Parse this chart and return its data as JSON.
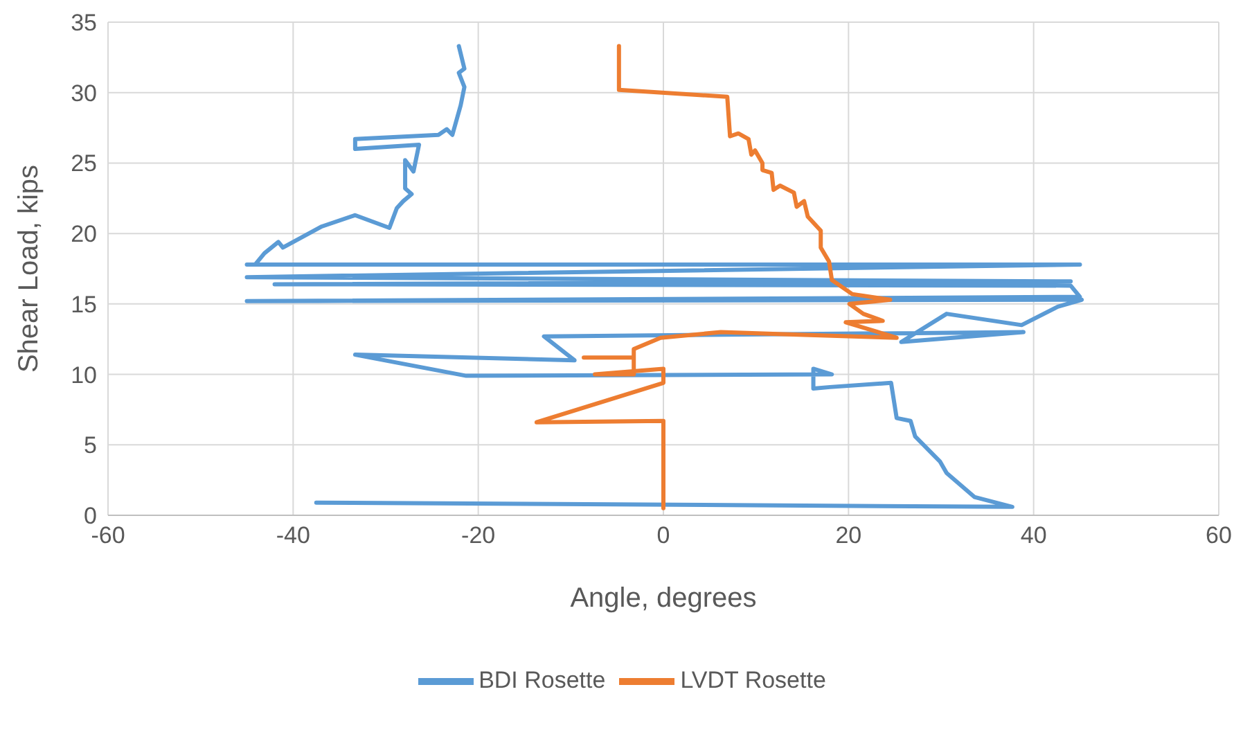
{
  "chart_data": {
    "type": "line",
    "xlabel": "Angle, degrees",
    "ylabel": "Shear Load, kips",
    "xlim": [
      -60,
      60
    ],
    "xticks": [
      -60,
      -40,
      -20,
      0,
      20,
      40,
      60
    ],
    "ylim": [
      0,
      35
    ],
    "yticks": [
      0,
      5,
      10,
      15,
      20,
      25,
      30,
      35
    ],
    "grid": true,
    "legend": "bottom",
    "marker": "none",
    "line_style": "solid",
    "series": [
      {
        "name": "BDI Rosette",
        "color": "#5b9bd5",
        "x": [
          -37.5,
          37.7,
          33.6,
          30.6,
          29.9,
          27.2,
          26.7,
          25.2,
          24.6,
          18,
          16.2,
          16.2,
          18.2,
          -21.3,
          -33.3,
          -9.6,
          -12.9,
          38.9,
          25.7,
          30.6,
          38.7,
          42.6,
          45.2,
          -45,
          45,
          44,
          -42,
          44,
          -45,
          45,
          -45,
          -44.1,
          -43.1,
          -41.6,
          -41.1,
          -36.9,
          -33.3,
          -29.6,
          -28.8,
          -28.1,
          -27.2,
          -27.9,
          -27.9,
          -27,
          -26.4,
          -33.3,
          -33.3,
          -24.3,
          -23.4,
          -22.8,
          -21.9,
          -21.5,
          -22.1,
          -21.5,
          -22.1
        ],
        "values": [
          0.9,
          0.6,
          1.3,
          3,
          3.8,
          5.6,
          6.7,
          6.9,
          9.4,
          9.1,
          9,
          10.4,
          10,
          9.9,
          11.4,
          11,
          12.7,
          13,
          12.3,
          14.3,
          13.5,
          14.8,
          15.3,
          15.2,
          15.5,
          16.3,
          16.4,
          16.6,
          16.9,
          17.8,
          17.8,
          17.8,
          18.6,
          19.4,
          19,
          20.5,
          21.3,
          20.4,
          21.8,
          22.3,
          22.8,
          23.2,
          25.2,
          24.4,
          26.3,
          26,
          26.7,
          27,
          27.4,
          27,
          29.1,
          30.4,
          31.4,
          31.7,
          33.3
        ]
      },
      {
        "name": "LVDT Rosette",
        "color": "#ed7d31",
        "x": [
          0,
          0,
          -13.7,
          0,
          0,
          -7.4,
          -3.2,
          -3.2,
          -8.6,
          -3.2,
          -3.2,
          -0.3,
          6.2,
          15.2,
          25.2,
          19.7,
          23.7,
          21.6,
          20.1,
          24.5,
          20.4,
          18.2,
          17.9,
          17,
          17,
          15.6,
          15.2,
          14.4,
          14.1,
          12.6,
          11.9,
          11.7,
          10.7,
          10.7,
          9.9,
          9.5,
          9.2,
          8.1,
          7.2,
          6.9,
          -4.8,
          -4.8
        ],
        "values": [
          0.5,
          6.7,
          6.6,
          9.4,
          10.4,
          10,
          10,
          11.2,
          11.2,
          11.2,
          11.8,
          12.6,
          13,
          12.8,
          12.6,
          13.7,
          13.8,
          14.3,
          15,
          15.3,
          15.7,
          16.7,
          18,
          19,
          20.2,
          21.2,
          22.3,
          21.9,
          22.9,
          23.4,
          23.1,
          24.3,
          24.5,
          25,
          25.9,
          25.6,
          26.7,
          27.1,
          26.9,
          29.7,
          30.2,
          33.3
        ]
      }
    ]
  }
}
